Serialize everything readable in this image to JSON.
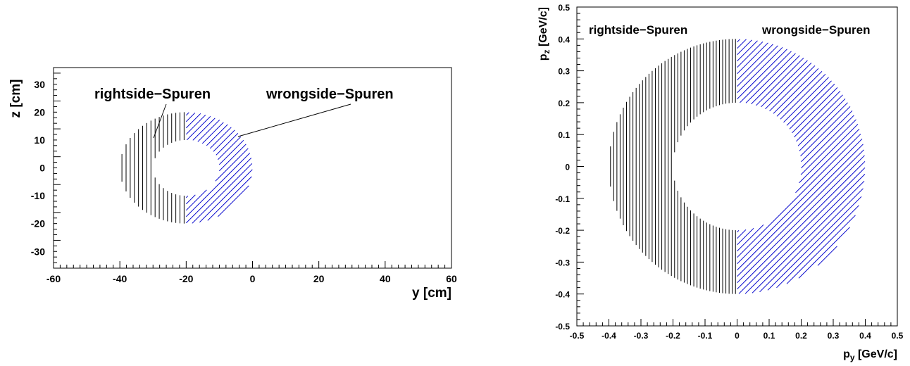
{
  "chart_data": [
    {
      "type": "area",
      "xlabel": "y [cm]",
      "ylabel": "z [cm]",
      "xlim": [
        -60,
        60
      ],
      "ylim": [
        -36,
        36
      ],
      "xticks": [
        "-60",
        "-40",
        "-20",
        "0",
        "20",
        "40",
        "60"
      ],
      "yticks": [
        "-30",
        "-20",
        "-10",
        "0",
        "10",
        "20",
        "30"
      ],
      "ring": {
        "inner_radius": 10,
        "outer_radius": 20,
        "center": [
          -20,
          0
        ]
      },
      "regions": [
        {
          "name": "rightside-Spuren",
          "label": "rightside−Spuren",
          "y_range": [
            -40,
            -20
          ],
          "hatch": "vertical",
          "color": "#000000"
        },
        {
          "name": "wrongside-Spuren",
          "label": "wrongside−Spuren",
          "y_range": [
            -20,
            0
          ],
          "hatch": "diagonal",
          "color": "#0000cc"
        }
      ],
      "grid": false
    },
    {
      "type": "area",
      "xlabel": "p",
      "xlabel_sub": "y",
      "xlabel_unit": " [GeV/c]",
      "ylabel": "p",
      "ylabel_sub": "z",
      "ylabel_unit": " [GeV/c]",
      "xlim": [
        -0.5,
        0.5
      ],
      "ylim": [
        -0.5,
        0.5
      ],
      "xticks": [
        "-0.5",
        "-0.4",
        "-0.3",
        "-0.2",
        "-0.1",
        "0",
        "0.1",
        "0.2",
        "0.3",
        "0.4",
        "0.5"
      ],
      "yticks": [
        "-0.5",
        "-0.4",
        "-0.3",
        "-0.2",
        "-0.1",
        "0",
        "0.1",
        "0.2",
        "0.3",
        "0.4",
        "0.5"
      ],
      "ring": {
        "inner_radius": 0.2,
        "outer_radius": 0.4,
        "center": [
          0,
          0
        ]
      },
      "regions": [
        {
          "name": "rightside-Spuren",
          "label": "rightside−Spuren",
          "py_range": [
            -0.4,
            0
          ],
          "hatch": "vertical",
          "color": "#000000"
        },
        {
          "name": "wrongside-Spuren",
          "label": "wrongside−Spuren",
          "py_range": [
            0,
            0.4
          ],
          "hatch": "diagonal",
          "color": "#0000cc"
        }
      ],
      "grid": false
    }
  ]
}
